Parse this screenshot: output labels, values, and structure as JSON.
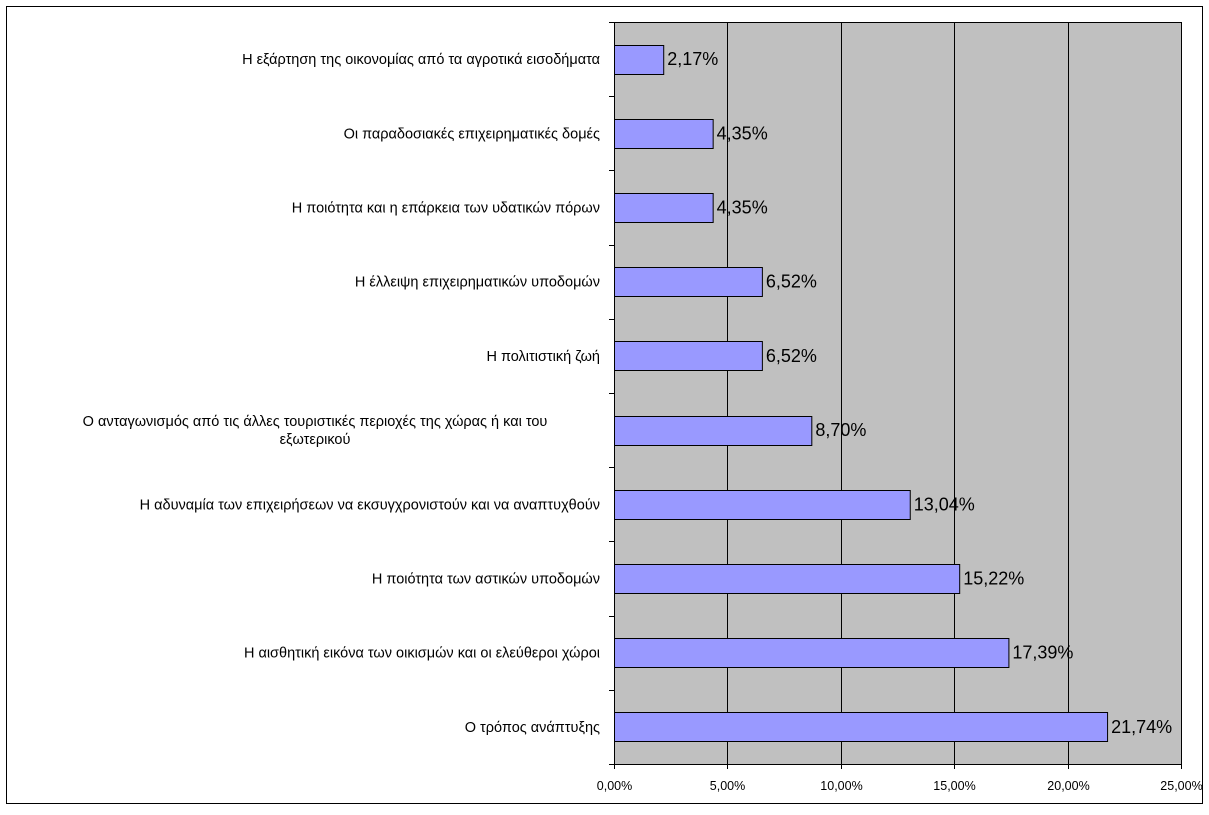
{
  "colors": {
    "plot_background": "#c0c0c0",
    "bar_fill": "#9999ff",
    "bar_stroke": "#000000",
    "gridline": "#000000",
    "frame": "#000000"
  },
  "chart_data": {
    "type": "bar",
    "orientation": "horizontal",
    "title": "",
    "xlabel": "",
    "ylabel": "",
    "xlim": [
      0,
      25
    ],
    "x_ticks": [
      "0,00%",
      "5,00%",
      "10,00%",
      "15,00%",
      "20,00%",
      "25,00%"
    ],
    "grid": "vertical major gridlines on",
    "legend": "none",
    "categories": [
      "Η εξάρτηση της οικονομίας από τα αγροτικά εισοδήματα",
      "Οι παραδοσιακές επιχειρηματικές δομές",
      "Η ποιότητα και η επάρκεια των υδατικών πόρων",
      "Η έλλειψη επιχειρηματικών υποδομών",
      "Η πολιτιστική ζωή",
      "Ο ανταγωνισμός από τις άλλες τουριστικές περιοχές της χώρας ή και του εξωτερικού",
      "Η αδυναμία των επιχειρήσεων να εκσυγχρονιστούν και να αναπτυχθούν",
      "Η ποιότητα των αστικών υποδομών",
      "Η αισθητική εικόνα των οικισμών και οι ελεύθεροι χώροι",
      "Ο τρόπος ανάπτυξης"
    ],
    "category_lines": [
      [
        "Η εξάρτηση της οικονομίας από τα αγροτικά εισοδήματα"
      ],
      [
        "Οι παραδοσιακές επιχειρηματικές δομές"
      ],
      [
        "Η ποιότητα και η επάρκεια των υδατικών πόρων"
      ],
      [
        "Η έλλειψη επιχειρηματικών υποδομών"
      ],
      [
        "Η πολιτιστική ζωή"
      ],
      [
        "Ο ανταγωνισμός από τις άλλες τουριστικές περιοχές της χώρας ή και του",
        "εξωτερικού"
      ],
      [
        "Η αδυναμία των επιχειρήσεων να εκσυγχρονιστούν και να αναπτυχθούν"
      ],
      [
        "Η ποιότητα των αστικών υποδομών"
      ],
      [
        "Η αισθητική εικόνα των οικισμών και οι ελεύθεροι χώροι"
      ],
      [
        "Ο τρόπος ανάπτυξης"
      ]
    ],
    "values": [
      2.17,
      4.35,
      4.35,
      6.52,
      6.52,
      8.7,
      13.04,
      15.22,
      17.39,
      21.74
    ],
    "data_labels": [
      "2,17%",
      "4,35%",
      "4,35%",
      "6,52%",
      "6,52%",
      "8,70%",
      "13,04%",
      "15,22%",
      "17,39%",
      "21,74%"
    ]
  }
}
